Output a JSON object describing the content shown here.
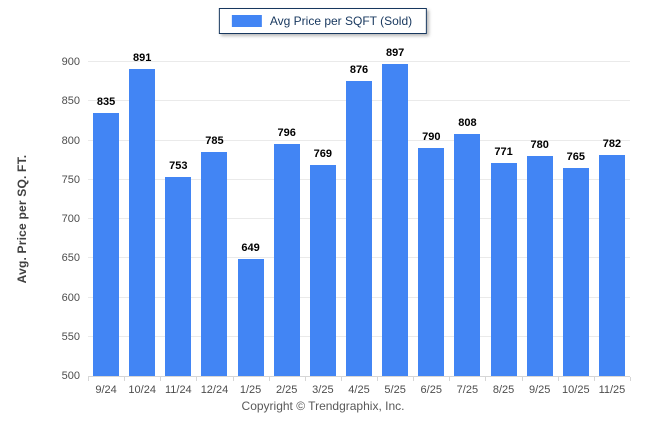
{
  "page": {
    "background": "#ffffff",
    "footer": "Copyright © Trendgraphix, Inc."
  },
  "legend": {
    "label": "Avg Price per SQFT (Sold)",
    "swatch_color": "#4285f4",
    "border_color": "#17375e",
    "text_color": "#17375e"
  },
  "chart_data": {
    "type": "bar",
    "title": "",
    "categories": [
      "9/24",
      "10/24",
      "11/24",
      "12/24",
      "1/25",
      "2/25",
      "3/25",
      "4/25",
      "5/25",
      "6/25",
      "7/25",
      "8/25",
      "9/25",
      "10/25",
      "11/25"
    ],
    "values": [
      835,
      891,
      753,
      785,
      649,
      796,
      769,
      876,
      897,
      790,
      808,
      771,
      780,
      765,
      782
    ],
    "series_name": "Avg Price per SQFT (Sold)",
    "xlabel": "",
    "ylabel": "Avg. Price per SQ. FT.",
    "ylim": [
      500,
      900
    ],
    "ytick_step": 50,
    "grid": true,
    "legend_position": "top-center",
    "bar_color": "#4285f4",
    "value_label_color": "#000000",
    "axis_label_color": "#4d4d4d",
    "gridline_color": "#eaeaea",
    "axis_line_color": "#d6d6d6",
    "footer": "Copyright © Trendgraphix, Inc."
  }
}
